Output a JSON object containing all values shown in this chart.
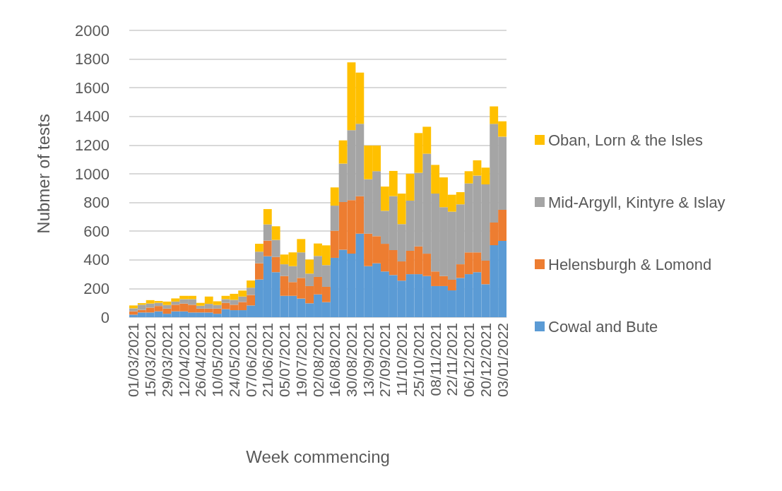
{
  "chart_data": {
    "type": "bar",
    "stacked": true,
    "xlabel": "Week commencing",
    "ylabel": "Nubmer of tests",
    "categories": [
      "01/03/2021",
      null,
      "15/03/2021",
      null,
      "29/03/2021",
      null,
      "12/04/2021",
      null,
      "26/04/2021",
      null,
      "10/05/2021",
      null,
      "24/05/2021",
      null,
      "07/06/2021",
      null,
      "21/06/2021",
      null,
      "05/07/2021",
      null,
      "19/07/2021",
      null,
      "02/08/2021",
      null,
      "16/08/2021",
      null,
      "30/08/2021",
      null,
      "13/09/2021",
      null,
      "27/09/2021",
      null,
      "11/10/2021",
      null,
      "25/10/2021",
      null,
      "08/11/2021",
      null,
      "22/11/2021",
      null,
      "06/12/2021",
      null,
      "20/12/2021",
      null,
      "03/01/2022"
    ],
    "ylim": [
      0,
      2000
    ],
    "yticks": [
      0,
      200,
      400,
      600,
      800,
      1000,
      1200,
      1400,
      1600,
      1800,
      2000
    ],
    "grid": "y",
    "legend": "right",
    "series": [
      {
        "name": "Cowal and Bute",
        "color": "#5b9bd5",
        "values": [
          18,
          33,
          33,
          41,
          24,
          41,
          41,
          33,
          33,
          33,
          24,
          56,
          49,
          49,
          82,
          263,
          425,
          314,
          149,
          149,
          130,
          97,
          159,
          105,
          414,
          470,
          443,
          583,
          356,
          376,
          319,
          294,
          255,
          300,
          300,
          287,
          217,
          217,
          187,
          274,
          300,
          314,
          230,
          502,
          532
        ]
      },
      {
        "name": "Helensburgh & Lomond",
        "color": "#ed7d31",
        "values": [
          23,
          18,
          34,
          37,
          36,
          46,
          54,
          54,
          27,
          27,
          36,
          44,
          38,
          57,
          73,
          113,
          109,
          106,
          138,
          96,
          144,
          120,
          122,
          107,
          189,
          333,
          373,
          261,
          227,
          189,
          193,
          174,
          134,
          163,
          194,
          156,
          102,
          70,
          74,
          95,
          152,
          138,
          164,
          158,
          217
        ]
      },
      {
        "name": "Mid-Argyll, Kintyre & Islay",
        "color": "#a5a5a5",
        "values": [
          21,
          36,
          28,
          22,
          25,
          22,
          31,
          39,
          20,
          33,
          25,
          26,
          34,
          38,
          51,
          81,
          113,
          119,
          82,
          111,
          178,
          87,
          146,
          151,
          175,
          268,
          488,
          504,
          379,
          453,
          230,
          376,
          260,
          350,
          513,
          697,
          543,
          480,
          475,
          418,
          481,
          535,
          532,
          688,
          510
        ]
      },
      {
        "name": "Oban, Lorn & the Isles",
        "color": "#ffc000",
        "values": [
          20,
          11,
          24,
          13,
          24,
          22,
          23,
          23,
          20,
          51,
          26,
          23,
          42,
          42,
          50,
          55,
          107,
          95,
          68,
          96,
          93,
          98,
          87,
          138,
          127,
          162,
          473,
          358,
          235,
          179,
          169,
          176,
          213,
          187,
          277,
          188,
          200,
          208,
          118,
          85,
          85,
          107,
          117,
          122,
          107
        ]
      }
    ]
  }
}
